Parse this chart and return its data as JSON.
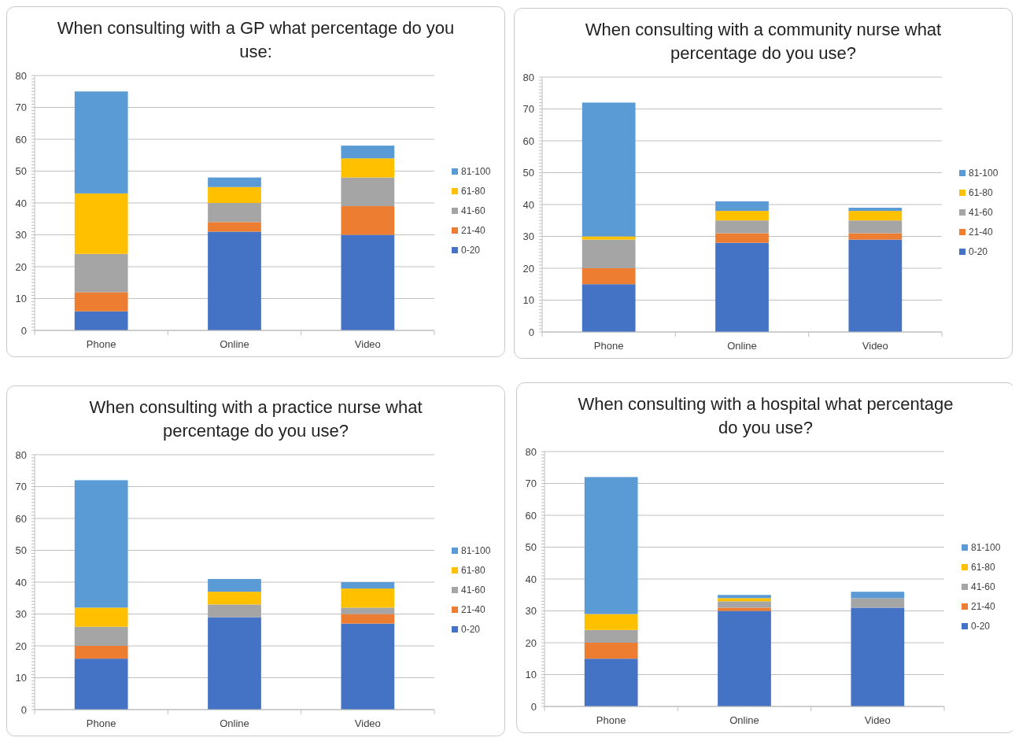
{
  "chart_data": [
    {
      "type": "bar",
      "stacked": true,
      "title": "When consulting with a GP what percentage do you use:",
      "categories": [
        "Phone",
        "Online",
        "Video"
      ],
      "ylim": [
        0,
        80
      ],
      "yticks": [
        0,
        10,
        20,
        30,
        40,
        50,
        60,
        70,
        80
      ],
      "grid": "y",
      "legend": "right",
      "series": [
        {
          "name": "0-20",
          "color": "#4472c4",
          "values": [
            6,
            31,
            30
          ]
        },
        {
          "name": "21-40",
          "color": "#ed7d31",
          "values": [
            6,
            3,
            9
          ]
        },
        {
          "name": "41-60",
          "color": "#a5a5a5",
          "values": [
            12,
            6,
            9
          ]
        },
        {
          "name": "61-80",
          "color": "#ffc000",
          "values": [
            19,
            5,
            6
          ]
        },
        {
          "name": "81-100",
          "color": "#5b9bd5",
          "values": [
            32,
            3,
            4
          ]
        }
      ]
    },
    {
      "type": "bar",
      "stacked": true,
      "title": "When consulting with a community nurse what percentage do you use?",
      "categories": [
        "Phone",
        "Online",
        "Video"
      ],
      "ylim": [
        0,
        80
      ],
      "yticks": [
        0,
        10,
        20,
        30,
        40,
        50,
        60,
        70,
        80
      ],
      "grid": "y",
      "legend": "right",
      "series": [
        {
          "name": "0-20",
          "color": "#4472c4",
          "values": [
            15,
            28,
            29
          ]
        },
        {
          "name": "21-40",
          "color": "#ed7d31",
          "values": [
            5,
            3,
            2
          ]
        },
        {
          "name": "41-60",
          "color": "#a5a5a5",
          "values": [
            9,
            4,
            4
          ]
        },
        {
          "name": "61-80",
          "color": "#ffc000",
          "values": [
            1,
            3,
            3
          ]
        },
        {
          "name": "81-100",
          "color": "#5b9bd5",
          "values": [
            42,
            3,
            1
          ]
        }
      ]
    },
    {
      "type": "bar",
      "stacked": true,
      "title": "When consulting with a practice nurse what percentage do you use?",
      "categories": [
        "Phone",
        "Online",
        "Video"
      ],
      "ylim": [
        0,
        80
      ],
      "yticks": [
        0,
        10,
        20,
        30,
        40,
        50,
        60,
        70,
        80
      ],
      "grid": "y",
      "legend": "right",
      "series": [
        {
          "name": "0-20",
          "color": "#4472c4",
          "values": [
            16,
            29,
            27
          ]
        },
        {
          "name": "21-40",
          "color": "#ed7d31",
          "values": [
            4,
            0,
            3
          ]
        },
        {
          "name": "41-60",
          "color": "#a5a5a5",
          "values": [
            6,
            4,
            2
          ]
        },
        {
          "name": "61-80",
          "color": "#ffc000",
          "values": [
            6,
            4,
            6
          ]
        },
        {
          "name": "81-100",
          "color": "#5b9bd5",
          "values": [
            40,
            4,
            2
          ]
        }
      ]
    },
    {
      "type": "bar",
      "stacked": true,
      "title": "When consulting with a hospital what percentage do you use?",
      "categories": [
        "Phone",
        "Online",
        "Video"
      ],
      "ylim": [
        0,
        80
      ],
      "yticks": [
        0,
        10,
        20,
        30,
        40,
        50,
        60,
        70,
        80
      ],
      "grid": "y",
      "legend": "right",
      "series": [
        {
          "name": "0-20",
          "color": "#4472c4",
          "values": [
            15,
            30,
            31
          ]
        },
        {
          "name": "21-40",
          "color": "#ed7d31",
          "values": [
            5,
            1,
            0
          ]
        },
        {
          "name": "41-60",
          "color": "#a5a5a5",
          "values": [
            4,
            2,
            3
          ]
        },
        {
          "name": "61-80",
          "color": "#ffc000",
          "values": [
            5,
            1,
            0
          ]
        },
        {
          "name": "81-100",
          "color": "#5b9bd5",
          "values": [
            43,
            1,
            2
          ]
        }
      ]
    }
  ]
}
